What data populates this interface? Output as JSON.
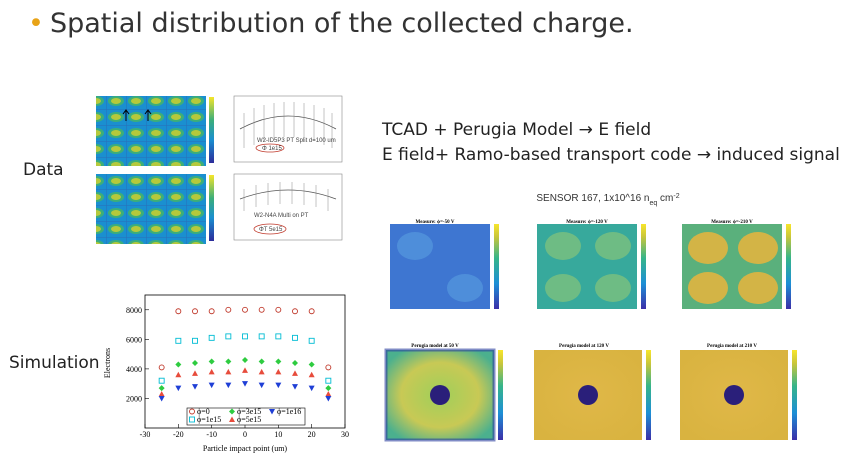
{
  "title": "Spatial distribution of the collected charge.",
  "labels": {
    "data": "Data",
    "simulation": "Simulation"
  },
  "tcad": {
    "line1": "TCAD + Perugia Model  → E field",
    "line2": "E field+ Ramo-based transport code  → induced signal"
  },
  "sensor": {
    "prefix": "SENSOR 167, 1x10^16 n",
    "sub": "eq",
    "suffix": " cm",
    "sup": "-2"
  },
  "maps": {
    "measured": [
      "Measure: ϕ=-50 V",
      "Measure: ϕ=-120 V",
      "Measure: ϕ=-210 V"
    ],
    "model": [
      "Perugia model at 50 V",
      "Perugia model at 120 V",
      "Perugia model at 210 V"
    ]
  },
  "data_panel": {
    "plot1_label": "W2-ID5P3 PT Split d=100 um",
    "plot1_badge": "Φ 1e15",
    "plot2_label": "W2-N4A Multi on PT",
    "plot2_badge": "ΦT 5e15"
  },
  "chart_data": {
    "type": "scatter",
    "xlabel": "Particle impact point (um)",
    "ylabel": "Electrons",
    "xlim": [
      -30,
      30
    ],
    "ylim": [
      0,
      9000
    ],
    "xticks": [
      -30,
      -20,
      -10,
      0,
      10,
      20,
      30
    ],
    "yticks": [
      2000,
      4000,
      6000,
      8000
    ],
    "series": [
      {
        "name": "ϕ=0",
        "marker": "circle",
        "color": "#c0392b",
        "x": [
          -25,
          -20,
          -15,
          -10,
          -5,
          0,
          5,
          10,
          15,
          20,
          25
        ],
        "y": [
          4100,
          7900,
          7900,
          7900,
          8000,
          8000,
          8000,
          8000,
          7900,
          7900,
          4100
        ]
      },
      {
        "name": "ϕ=1e15",
        "marker": "square",
        "color": "#00bcd4",
        "x": [
          -25,
          -20,
          -15,
          -10,
          -5,
          0,
          5,
          10,
          15,
          20,
          25
        ],
        "y": [
          3200,
          5900,
          5900,
          6100,
          6200,
          6200,
          6200,
          6200,
          6100,
          5900,
          3200
        ]
      },
      {
        "name": "ϕ=3e15",
        "marker": "diamond",
        "color": "#2ecc40",
        "x": [
          -25,
          -20,
          -15,
          -10,
          -5,
          0,
          5,
          10,
          15,
          20,
          25
        ],
        "y": [
          2700,
          4300,
          4400,
          4500,
          4500,
          4600,
          4500,
          4500,
          4400,
          4300,
          2700
        ]
      },
      {
        "name": "ϕ=5e15",
        "marker": "triangle-up",
        "color": "#e74c3c",
        "x": [
          -25,
          -20,
          -15,
          -10,
          -5,
          0,
          5,
          10,
          15,
          20,
          25
        ],
        "y": [
          2300,
          3600,
          3700,
          3800,
          3800,
          3900,
          3800,
          3800,
          3700,
          3600,
          2300
        ]
      },
      {
        "name": "ϕ=1e16",
        "marker": "triangle-down",
        "color": "#1f3fd6",
        "x": [
          -25,
          -20,
          -15,
          -10,
          -5,
          0,
          5,
          10,
          15,
          20,
          25
        ],
        "y": [
          2000,
          2700,
          2800,
          2900,
          2900,
          3000,
          2900,
          2900,
          2800,
          2700,
          2000
        ]
      }
    ],
    "legend": "bottom-center"
  }
}
